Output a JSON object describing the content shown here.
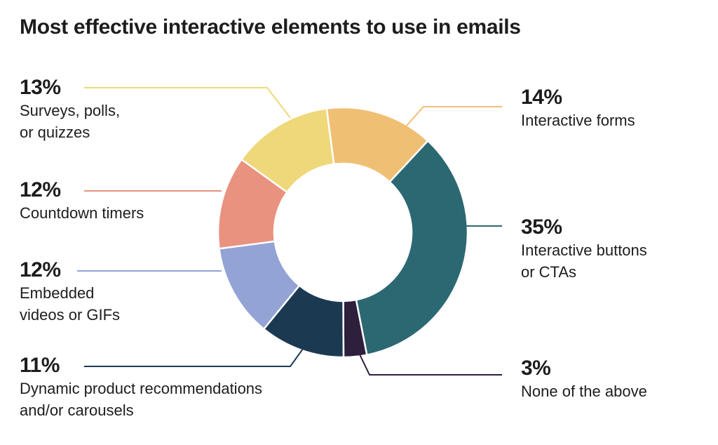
{
  "title": "Most effective interactive elements to use in emails",
  "chart_data": {
    "type": "pie",
    "donut": true,
    "segments": [
      {
        "id": "interactive-forms",
        "value": 14,
        "pct_label": "14%",
        "label_lines": [
          "Interactive forms"
        ],
        "color": "#EFBF73"
      },
      {
        "id": "interactive-buttons",
        "value": 35,
        "pct_label": "35%",
        "label_lines": [
          "Interactive buttons",
          "or CTAs"
        ],
        "color": "#2C6872"
      },
      {
        "id": "none-of-the-above",
        "value": 3,
        "pct_label": "3%",
        "label_lines": [
          "None of the above"
        ],
        "color": "#2E1F3D"
      },
      {
        "id": "dynamic-product-recommendations",
        "value": 11,
        "pct_label": "11%",
        "label_lines": [
          "Dynamic product recommendations",
          "and/or carousels"
        ],
        "color": "#1B3A52"
      },
      {
        "id": "embedded-videos",
        "value": 12,
        "pct_label": "12%",
        "label_lines": [
          "Embedded",
          "videos or GIFs"
        ],
        "color": "#93A3D6"
      },
      {
        "id": "countdown-timers",
        "value": 12,
        "pct_label": "12%",
        "label_lines": [
          "Countdown timers"
        ],
        "color": "#E9927F"
      },
      {
        "id": "surveys-polls",
        "value": 13,
        "pct_label": "13%",
        "label_lines": [
          "Surveys, polls,",
          "or quizzes"
        ],
        "color": "#EFD87A"
      }
    ]
  }
}
